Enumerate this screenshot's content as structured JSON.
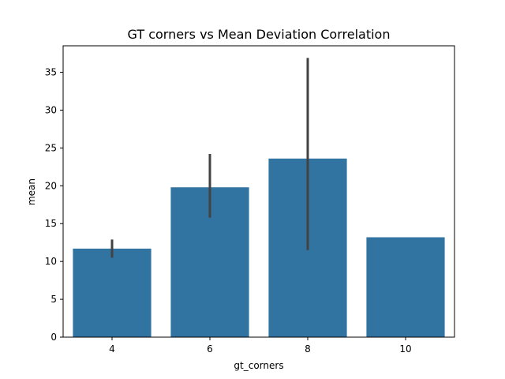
{
  "chart_data": {
    "type": "bar",
    "title": "GT corners vs Mean Deviation Correlation",
    "xlabel": "gt_corners",
    "ylabel": "mean",
    "categories": [
      "4",
      "6",
      "8",
      "10"
    ],
    "values": [
      11.7,
      19.8,
      23.6,
      13.2
    ],
    "error_bars": [
      {
        "low": 10.5,
        "high": 12.9
      },
      {
        "low": 15.8,
        "high": 24.2
      },
      {
        "low": 11.5,
        "high": 36.9
      },
      null
    ],
    "ylim": [
      0,
      38.5
    ],
    "yticks": [
      0,
      5,
      10,
      15,
      20,
      25,
      30,
      35
    ],
    "grid": false,
    "legend": "none",
    "bar_color": "#3274a1",
    "error_color": "#424242"
  }
}
